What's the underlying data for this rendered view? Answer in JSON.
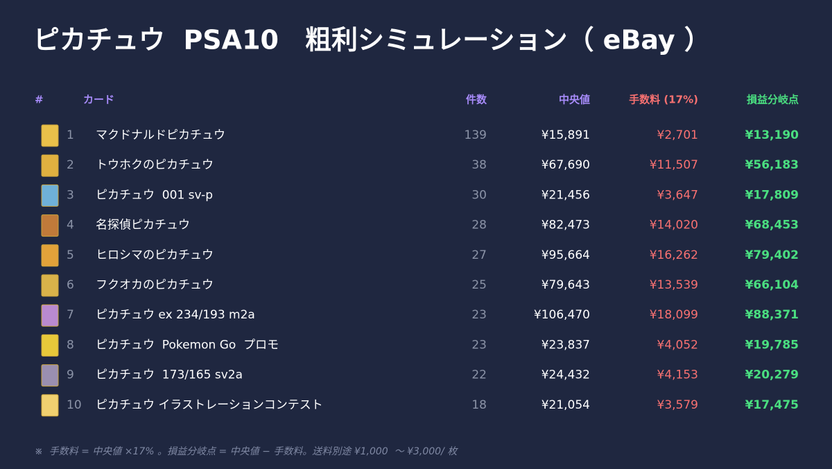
{
  "title": "ピカチュウ  PSA10　粗利シミュレーション（ eBay ）",
  "table": {
    "headers": [
      "#",
      "カード",
      "件数",
      "中央値",
      "手数料 (17%)",
      "損益分岐点"
    ],
    "rows": [
      [
        1,
        "マクドナルドピカチュウ",
        139,
        "¥15,891",
        "¥2,701",
        "¥13,190"
      ],
      [
        2,
        "トウホクのピカチュウ",
        38,
        "¥67,690",
        "¥11,507",
        "¥56,183"
      ],
      [
        3,
        "ピカチュウ  001 sv-p",
        30,
        "¥21,456",
        "¥3,647",
        "¥17,809"
      ],
      [
        4,
        "名探偵ピカチュウ",
        28,
        "¥82,473",
        "¥14,020",
        "¥68,453"
      ],
      [
        5,
        "ヒロシマのピカチュウ",
        27,
        "¥95,664",
        "¥16,262",
        "¥79,402"
      ],
      [
        6,
        "フクオカのピカチュウ",
        25,
        "¥79,643",
        "¥13,539",
        "¥66,104"
      ],
      [
        7,
        "ピカチュウ ex 234/193 m2a",
        23,
        "¥106,470",
        "¥18,099",
        "¥88,371"
      ],
      [
        8,
        "ピカチュウ  Pokemon Go  プロモ",
        23,
        "¥23,837",
        "¥4,052",
        "¥19,785"
      ],
      [
        9,
        "ピカチュウ  173/165 sv2a",
        22,
        "¥24,432",
        "¥4,153",
        "¥20,279"
      ],
      [
        10,
        "ピカチュウ イラストレーションコンテスト",
        18,
        "¥21,054",
        "¥3,579",
        "¥17,475"
      ]
    ]
  },
  "footnote": "※  手数料 = 中央値 ×17% 。損益分岐点 = 中央値 − 手数料。送料別途 ¥1,000  〜 ¥3,000/ 枚"
}
